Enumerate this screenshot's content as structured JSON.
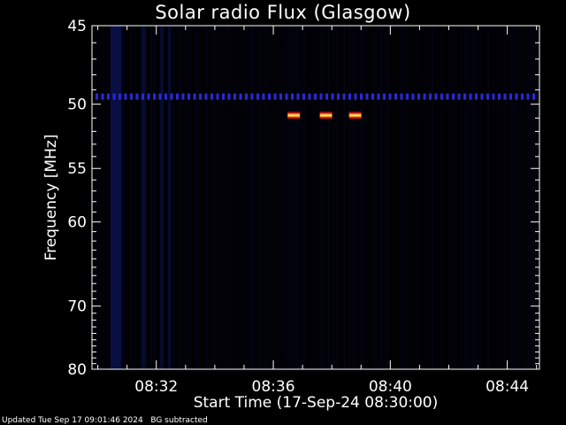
{
  "chart_data": {
    "type": "heatmap",
    "title": "Solar radio Flux (Glasgow)",
    "xlabel": "Start Time (17-Sep-24 08:30:00)",
    "ylabel": "Frequency [MHz]",
    "x_ticks": [
      "08:32",
      "08:36",
      "08:40",
      "08:44"
    ],
    "x_tick_minutes": [
      2,
      6,
      10,
      14
    ],
    "xlim_minutes": [
      -0.2,
      15.1
    ],
    "y_ticks": [
      45,
      50,
      55,
      60,
      70,
      80
    ],
    "ylim": [
      45,
      80
    ],
    "y_scale": "reciprocal",
    "background_color": "#000000",
    "bursts": [
      {
        "time_minutes": 6.7,
        "frequency_mhz": 50.8,
        "intensity": "high"
      },
      {
        "time_minutes": 7.8,
        "frequency_mhz": 50.8,
        "intensity": "high"
      },
      {
        "time_minutes": 8.8,
        "frequency_mhz": 50.8,
        "intensity": "high"
      }
    ],
    "interference_band_mhz": 49.5
  },
  "footer": {
    "updated": "Updated Tue Sep 17 09:01:46 2024",
    "note": "BG subtracted"
  }
}
